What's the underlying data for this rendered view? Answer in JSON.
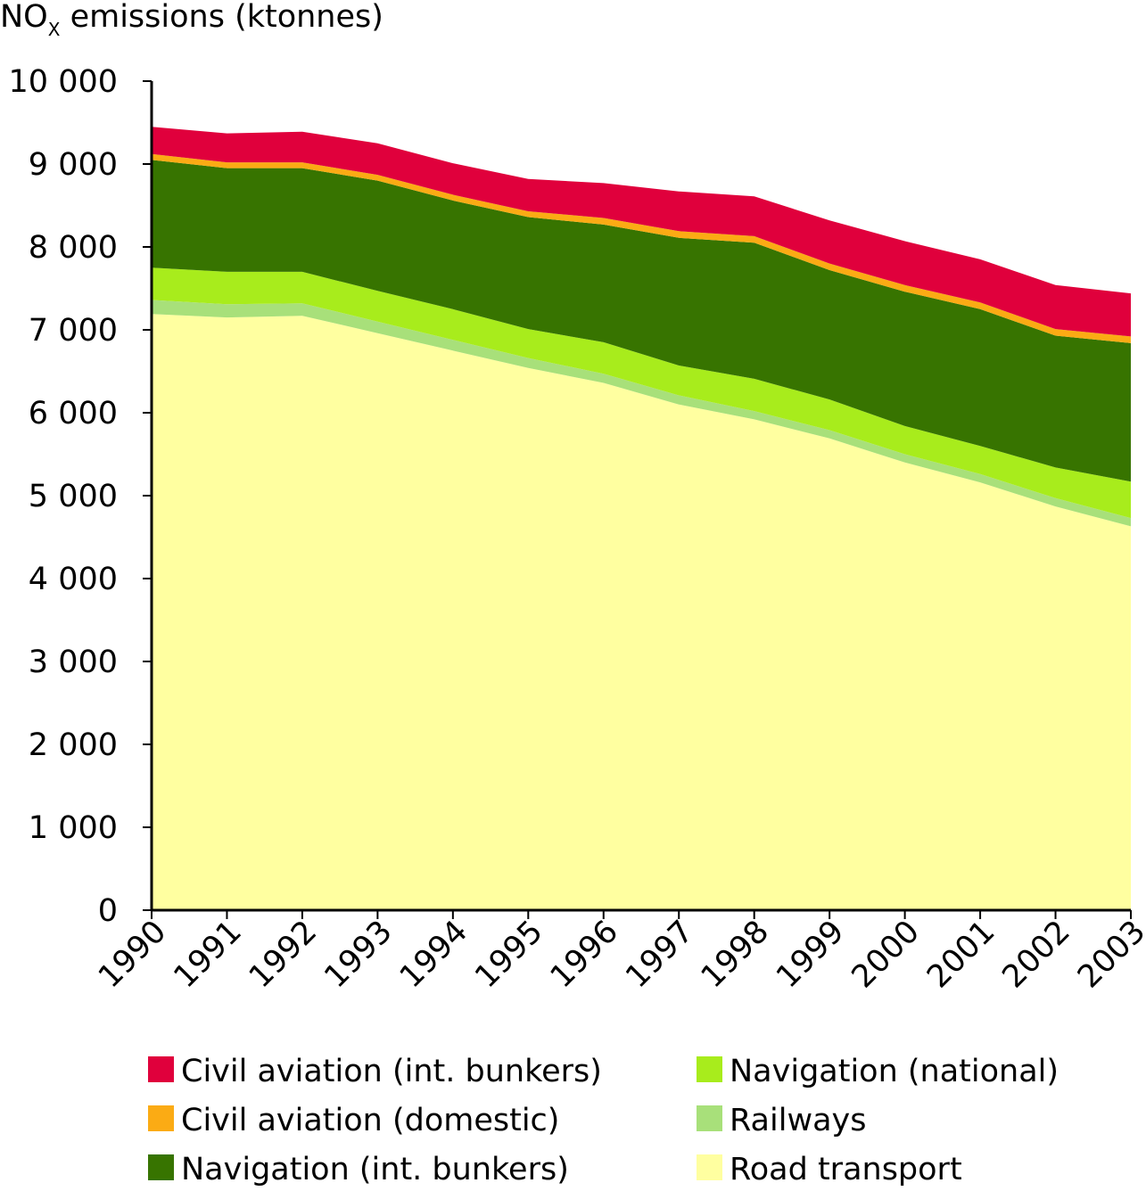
{
  "chart_data": {
    "type": "area",
    "stacked": true,
    "title": "",
    "ylabel_main": "NO",
    "ylabel_sub": "X",
    "ylabel_rest": " emissions (ktonnes)",
    "xlabel": "",
    "ylim": [
      0,
      10000
    ],
    "yticks": [
      {
        "value": 0,
        "label": "0"
      },
      {
        "value": 1000,
        "label": "1 000"
      },
      {
        "value": 2000,
        "label": "2 000"
      },
      {
        "value": 3000,
        "label": "3 000"
      },
      {
        "value": 4000,
        "label": "4 000"
      },
      {
        "value": 5000,
        "label": "5 000"
      },
      {
        "value": 6000,
        "label": "6 000"
      },
      {
        "value": 7000,
        "label": "7 000"
      },
      {
        "value": 8000,
        "label": "8 000"
      },
      {
        "value": 9000,
        "label": "9 000"
      },
      {
        "value": 10000,
        "label": "10 000"
      }
    ],
    "x": [
      "1990",
      "1991",
      "1992",
      "1993",
      "1994",
      "1995",
      "1996",
      "1997",
      "1998",
      "1999",
      "2000",
      "2001",
      "2002",
      "2003"
    ],
    "grid": false,
    "legend_position": "bottom",
    "series": [
      {
        "name": "Road transport",
        "color": "#ffffa0",
        "values": [
          7190,
          7150,
          7170,
          6960,
          6750,
          6540,
          6360,
          6100,
          5920,
          5690,
          5400,
          5160,
          4870,
          4630
        ]
      },
      {
        "name": "Railways",
        "color": "#a8e07a",
        "values": [
          170,
          160,
          150,
          140,
          130,
          120,
          110,
          110,
          100,
          100,
          100,
          100,
          100,
          100
        ]
      },
      {
        "name": "Navigation (national)",
        "color": "#a8ec1c",
        "values": [
          390,
          390,
          380,
          370,
          370,
          350,
          380,
          360,
          390,
          370,
          340,
          340,
          370,
          440
        ]
      },
      {
        "name": "Navigation (int. bunkers)",
        "color": "#377400",
        "values": [
          1300,
          1250,
          1250,
          1330,
          1310,
          1350,
          1420,
          1540,
          1640,
          1560,
          1620,
          1650,
          1590,
          1670
        ]
      },
      {
        "name": "Civil aviation (domestic)",
        "color": "#fbab14",
        "values": [
          70,
          70,
          70,
          70,
          70,
          70,
          80,
          80,
          80,
          80,
          80,
          80,
          80,
          80
        ]
      },
      {
        "name": "Civil aviation (int. bunkers)",
        "color": "#e0003c",
        "values": [
          330,
          350,
          370,
          380,
          380,
          390,
          420,
          480,
          480,
          520,
          530,
          520,
          530,
          520
        ]
      }
    ],
    "legend": [
      {
        "label": "Civil aviation (int. bunkers)",
        "color": "#e0003c"
      },
      {
        "label": "Navigation (national)",
        "color": "#a8ec1c"
      },
      {
        "label": "Civil aviation (domestic)",
        "color": "#fbab14"
      },
      {
        "label": "Railways",
        "color": "#a8e07a"
      },
      {
        "label": "Navigation (int. bunkers)",
        "color": "#377400"
      },
      {
        "label": "Road transport",
        "color": "#ffffa0"
      }
    ]
  }
}
